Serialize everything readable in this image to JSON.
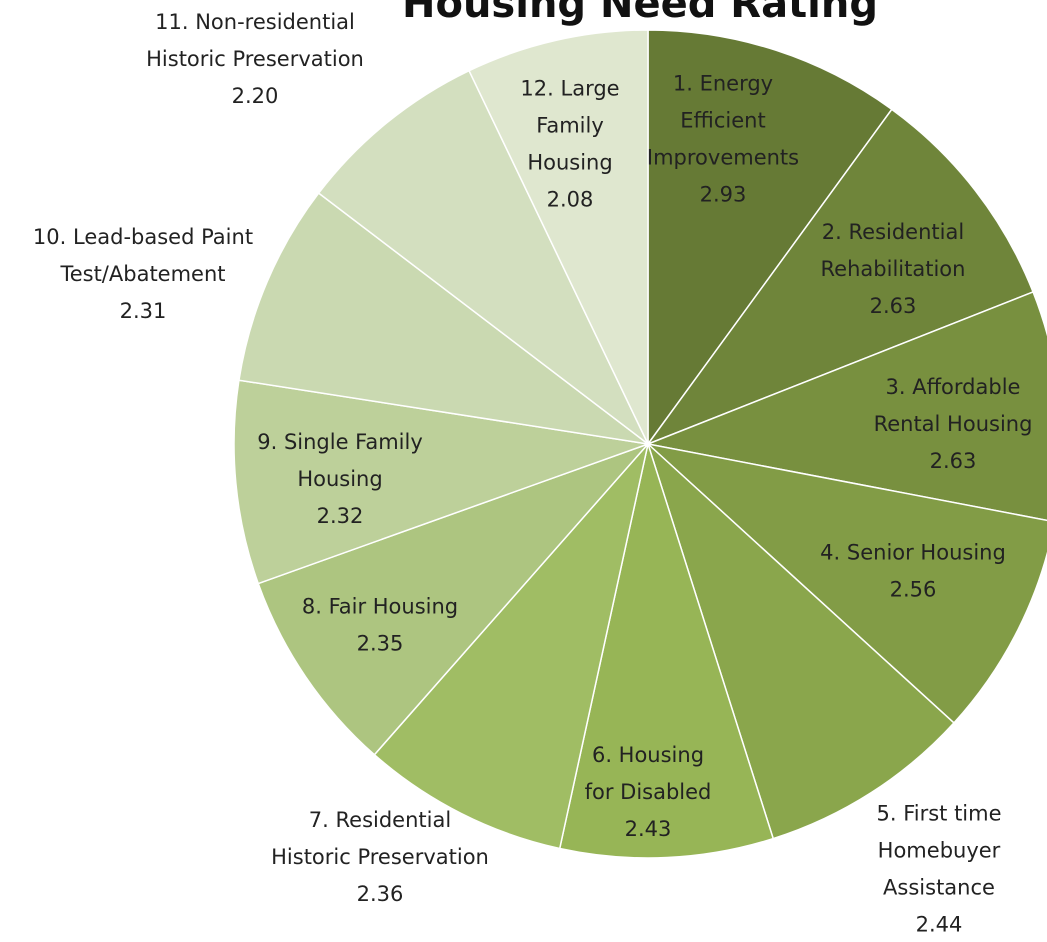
{
  "chart_data": {
    "type": "pie",
    "title": "Housing Need Rating",
    "categories": [
      "1. Energy\nEfficient\nImprovements",
      "2. Residential\nRehabilitation",
      "3. Affordable\nRental Housing",
      "4. Senior Housing",
      "5. First time\nHomebuyer\nAssistance",
      "6. Housing\nfor Disabled",
      "7. Residential\nHistoric Preservation",
      "8. Fair Housing",
      "9. Single Family\nHousing",
      "10. Lead-based Paint\nTest/Abatement",
      "11. Non-residential\nHistoric Preservation",
      "12. Large\nFamily\nHousing"
    ],
    "values": [
      2.93,
      2.63,
      2.63,
      2.56,
      2.44,
      2.43,
      2.36,
      2.35,
      2.32,
      2.31,
      2.2,
      2.08
    ],
    "value_labels": [
      "2.93",
      "2.63",
      "2.63",
      "2.56",
      "2.44",
      "2.43",
      "2.36",
      "2.35",
      "2.32",
      "2.31",
      "2.20",
      "2.08"
    ],
    "colors": [
      "#667a35",
      "#6f853a",
      "#78903f",
      "#829c46",
      "#8aa64c",
      "#97b556",
      "#a0bd64",
      "#adc580",
      "#bdd09a",
      "#cad9b1",
      "#d3dfbf",
      "#dfe7cf"
    ]
  }
}
